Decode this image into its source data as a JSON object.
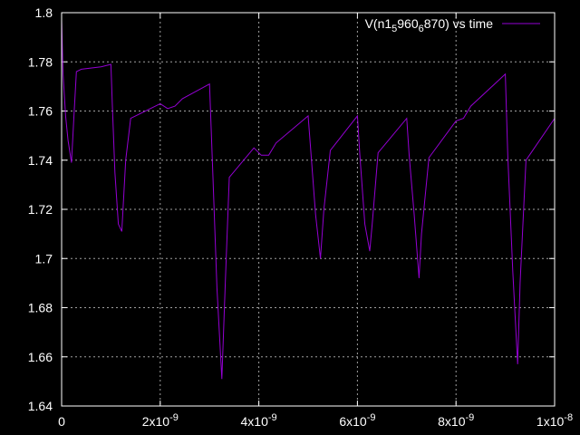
{
  "chart_data": {
    "type": "line",
    "title": "",
    "xlabel": "",
    "ylabel": "",
    "xlim": [
      0,
      1e-08
    ],
    "ylim": [
      1.64,
      1.8
    ],
    "grid": true,
    "legend_position": "top-right",
    "background_color": "#000000",
    "axis_color": "#ffffff",
    "grid_color": "#a0a0a0",
    "x_ticks": [
      {
        "value": 0,
        "label": "0",
        "mantissa": "0",
        "exponent": ""
      },
      {
        "value": 2e-09,
        "label": "2x10-9",
        "mantissa": "2x10",
        "exponent": "-9"
      },
      {
        "value": 4e-09,
        "label": "4x10-9",
        "mantissa": "4x10",
        "exponent": "-9"
      },
      {
        "value": 6e-09,
        "label": "6x10-9",
        "mantissa": "6x10",
        "exponent": "-9"
      },
      {
        "value": 8e-09,
        "label": "8x10-9",
        "mantissa": "8x10",
        "exponent": "-9"
      },
      {
        "value": 1e-08,
        "label": "1x10-8",
        "mantissa": "1x10",
        "exponent": "-8"
      }
    ],
    "y_ticks": [
      {
        "value": 1.64,
        "label": "1.64"
      },
      {
        "value": 1.66,
        "label": "1.66"
      },
      {
        "value": 1.68,
        "label": "1.68"
      },
      {
        "value": 1.7,
        "label": "1.7"
      },
      {
        "value": 1.72,
        "label": "1.72"
      },
      {
        "value": 1.74,
        "label": "1.74"
      },
      {
        "value": 1.76,
        "label": "1.76"
      },
      {
        "value": 1.78,
        "label": "1.78"
      },
      {
        "value": 1.8,
        "label": "1.8"
      }
    ],
    "series": [
      {
        "name": "V(n1_5960_6870) vs time",
        "legend_parts": [
          "V(n1",
          "5",
          "960",
          "6",
          "870) vs time"
        ],
        "color": "#9400d3",
        "x": [
          0,
          3e-11,
          8e-11,
          1.3e-10,
          2e-10,
          2.5e-10,
          3e-10,
          4e-10,
          8e-10,
          1e-09,
          1.03e-09,
          1.08e-09,
          1.15e-09,
          1.22e-09,
          1.3e-09,
          1.4e-09,
          2e-09,
          2.15e-09,
          2.3e-09,
          2.45e-09,
          3e-09,
          3.07e-09,
          3.15e-09,
          3.25e-09,
          3.32e-09,
          3.4e-09,
          3.9e-09,
          4.05e-09,
          4.2e-09,
          4.35e-09,
          5e-09,
          5.05e-09,
          5.15e-09,
          5.25e-09,
          5.32e-09,
          5.45e-09,
          6e-09,
          6.05e-09,
          6.15e-09,
          6.25e-09,
          6.3e-09,
          6.42e-09,
          7e-09,
          7.05e-09,
          7.15e-09,
          7.25e-09,
          7.3e-09,
          7.45e-09,
          8e-09,
          8.15e-09,
          8.3e-09,
          9e-09,
          9.05e-09,
          9.15e-09,
          9.25e-09,
          9.3e-09,
          9.42e-09,
          1e-08
        ],
        "y": [
          1.797,
          1.775,
          1.758,
          1.748,
          1.739,
          1.758,
          1.776,
          1.777,
          1.778,
          1.779,
          1.762,
          1.735,
          1.714,
          1.711,
          1.74,
          1.757,
          1.763,
          1.761,
          1.762,
          1.765,
          1.771,
          1.733,
          1.688,
          1.651,
          1.69,
          1.733,
          1.745,
          1.742,
          1.742,
          1.747,
          1.758,
          1.745,
          1.718,
          1.7,
          1.72,
          1.744,
          1.758,
          1.742,
          1.714,
          1.703,
          1.714,
          1.743,
          1.757,
          1.742,
          1.718,
          1.692,
          1.71,
          1.741,
          1.756,
          1.757,
          1.762,
          1.775,
          1.742,
          1.695,
          1.657,
          1.69,
          1.74,
          1.757
        ]
      }
    ]
  }
}
